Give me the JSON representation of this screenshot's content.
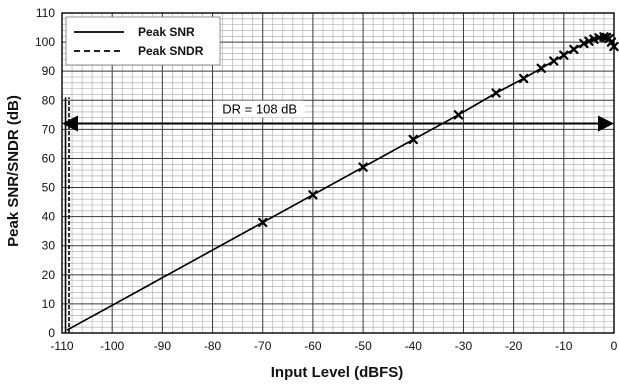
{
  "chart_data": {
    "type": "line",
    "title": "",
    "xlabel": "Input Level (dBFS)",
    "ylabel": "Peak SNR/SNDR (dB)",
    "xlim": [
      -110,
      0
    ],
    "ylim": [
      0,
      110
    ],
    "x_ticks": [
      -110,
      -100,
      -90,
      -80,
      -70,
      -60,
      -50,
      -40,
      -30,
      -20,
      -10,
      0
    ],
    "y_ticks": [
      0,
      10,
      20,
      30,
      40,
      50,
      60,
      70,
      80,
      90,
      100,
      110
    ],
    "grid": {
      "major": true,
      "minor": true
    },
    "legend_position": "top-left",
    "series": [
      {
        "name": "Peak SNR",
        "style": "solid",
        "color": "#000000",
        "x": [
          -109,
          -100,
          -90,
          -80,
          -70,
          -60,
          -50,
          -40,
          -31,
          -23.5,
          -18,
          -14.5,
          -12,
          -10,
          -8,
          -6,
          -5,
          -4,
          -3,
          -2,
          -1.5,
          -1,
          -0.5,
          0
        ],
        "y": [
          1,
          9.5,
          19,
          28.5,
          38,
          47.5,
          57,
          66.5,
          75,
          82.5,
          87.5,
          91,
          93.5,
          95.5,
          97.5,
          99.5,
          100.3,
          101,
          101.5,
          101.8,
          101.6,
          101.2,
          100,
          98.5
        ]
      },
      {
        "name": "Peak SNDR",
        "style": "dashed",
        "color": "#000000",
        "x": [
          -109,
          -100,
          -90,
          -80,
          -70,
          -60,
          -50,
          -40,
          -31,
          -23.5,
          -18,
          -14.5,
          -12,
          -10,
          -8,
          -6,
          -5,
          -4,
          -3,
          -2,
          -1.5,
          -1,
          -0.5,
          0
        ],
        "y": [
          1,
          9.5,
          19,
          28.5,
          38,
          47.5,
          57,
          66.5,
          75,
          82.5,
          87.5,
          91,
          93.5,
          95.5,
          97.5,
          99.5,
          100.3,
          101,
          101.5,
          101.8,
          101.6,
          101.2,
          100,
          98.5
        ]
      }
    ],
    "markers": {
      "symbol": "x",
      "x": [
        -70,
        -60,
        -50,
        -40,
        -31,
        -23.5,
        -18,
        -14.5,
        -12,
        -10,
        -8,
        -6,
        -5,
        -4,
        -3,
        -2,
        -1.5,
        -1,
        -0.5,
        0
      ],
      "y": [
        38,
        47.5,
        57,
        66.5,
        75,
        82.5,
        87.5,
        91,
        93.5,
        95.5,
        97.5,
        99.5,
        100.3,
        101,
        101.5,
        101.8,
        101.6,
        101.2,
        100,
        98.5
      ]
    },
    "annotations": {
      "dr_label": "DR = 108 dB",
      "dr_arrow": {
        "x_start": -110,
        "x_end": 0,
        "y": 72
      },
      "reference_line": {
        "x": -109,
        "y_from": 0,
        "y_to": 81
      }
    }
  }
}
